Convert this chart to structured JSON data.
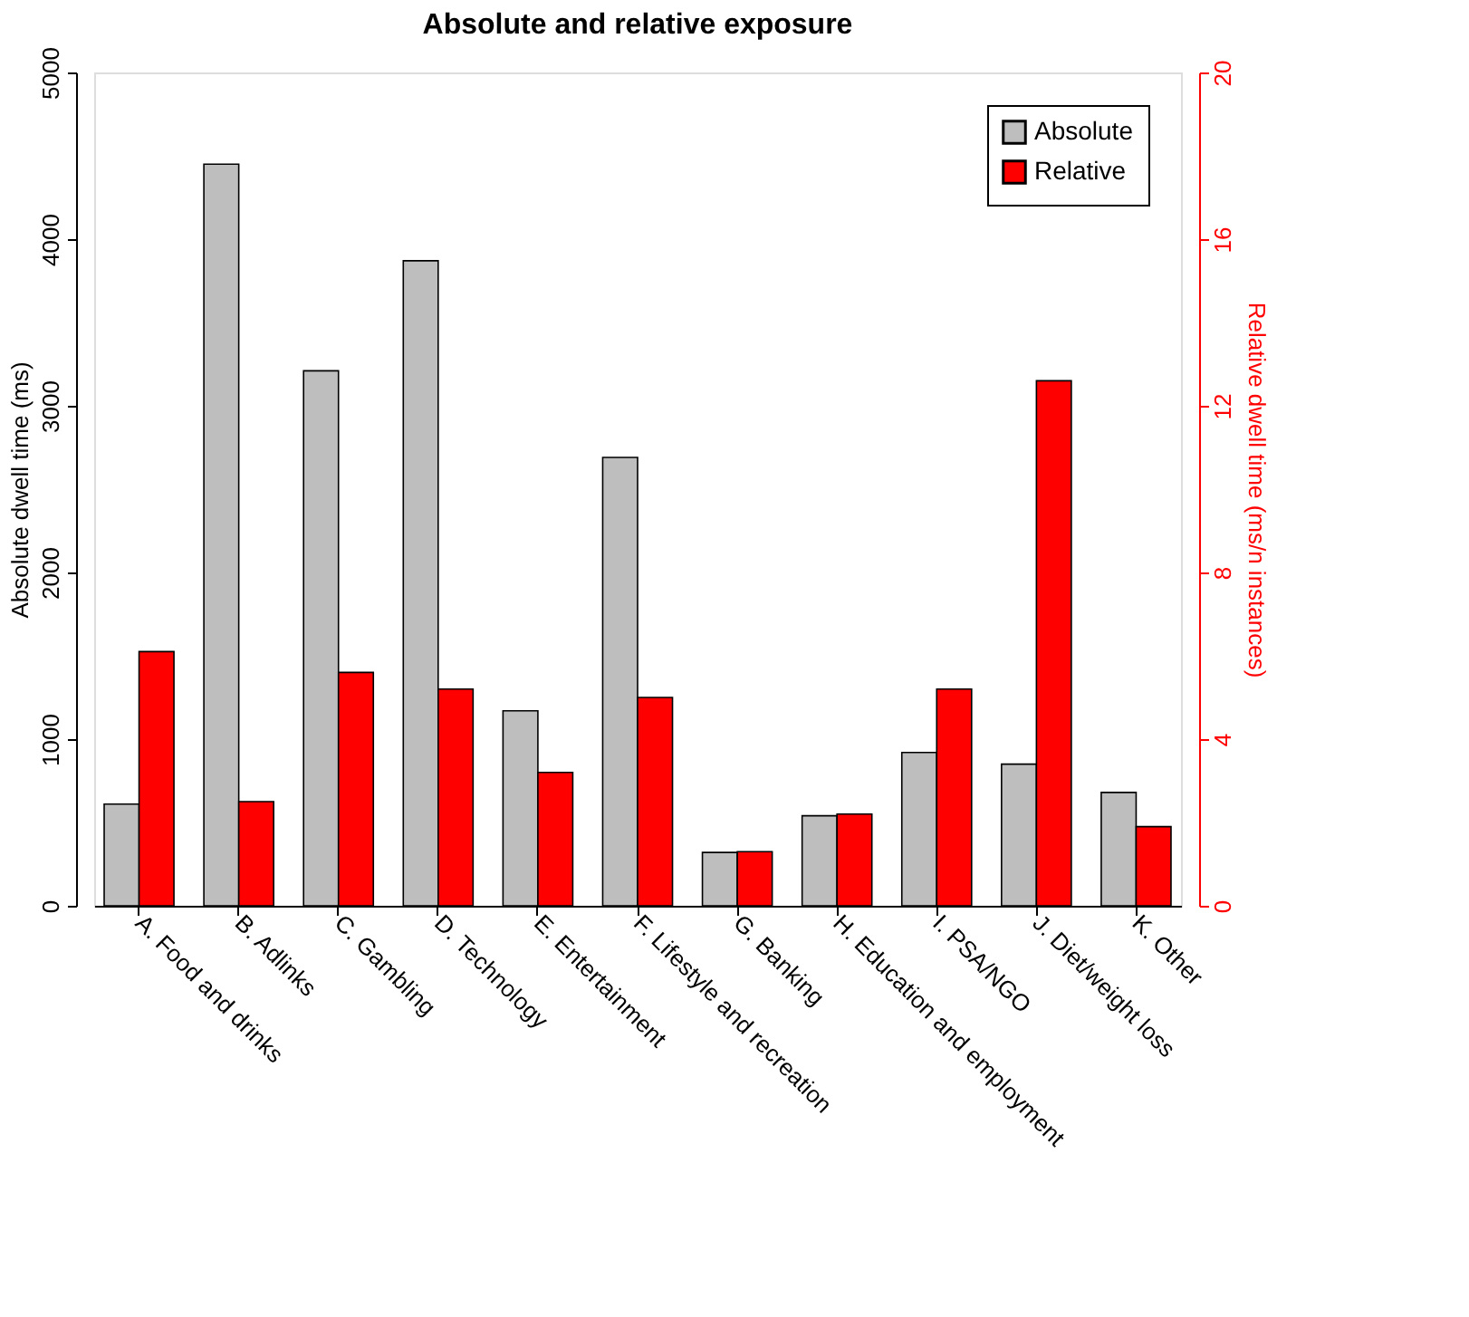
{
  "chart_data": {
    "type": "bar",
    "title": "Absolute and relative exposure",
    "categories": [
      "A. Food and drinks",
      "B. Adlinks",
      "C. Gambling",
      "D. Technology",
      "E. Entertainment",
      "F. Lifestyle and recreation",
      "G. Banking",
      "H. Education and employment",
      "I. PSA/NGO",
      "J. Diet/weight loss",
      "K. Other"
    ],
    "series": [
      {
        "name": "Absolute",
        "color": "#bebebe",
        "values": [
          610,
          4450,
          3210,
          3870,
          1170,
          2690,
          320,
          540,
          920,
          850,
          680
        ]
      },
      {
        "name": "Relative",
        "color": "#ff0000",
        "axis": "y2",
        "values": [
          6.1,
          2.5,
          5.6,
          5.2,
          3.2,
          5.0,
          1.3,
          2.2,
          5.2,
          12.6,
          1.9
        ]
      }
    ],
    "ylabel": "Absolute dwell time (ms)",
    "y2label": "Relative dwell time (ms/n instances)",
    "ylim": [
      0,
      5000
    ],
    "yticks": [
      0,
      1000,
      2000,
      3000,
      4000,
      5000
    ],
    "y2lim": [
      0,
      20
    ],
    "y2ticks": [
      0,
      4,
      8,
      12,
      16,
      20
    ],
    "legend": "top right",
    "grid": false
  }
}
